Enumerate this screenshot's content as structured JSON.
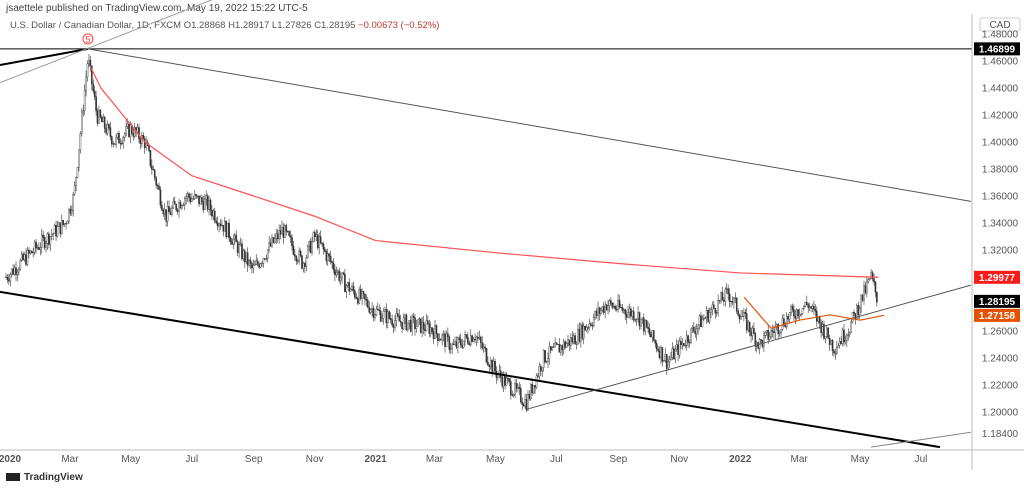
{
  "header": {
    "published": "jsaettele published on TradingView.com, May 19, 2022 15:22 UTC-5",
    "symbol": "U.S. Dollar / Canadian Dollar, 1D, FXCM",
    "open": "O1.28868",
    "high": "H1.28917",
    "low": "L1.27826",
    "close": "C1.28195",
    "change": "−0.00673 (−0.52%)"
  },
  "footer": {
    "logo": "TradingView"
  },
  "chart_data": {
    "type": "candlestick",
    "currency": "CAD",
    "ylim": [
      1.172,
      1.49
    ],
    "y_ticks": [
      "1.48000",
      "1.46000",
      "1.44000",
      "1.42000",
      "1.40000",
      "1.38000",
      "1.36000",
      "1.34000",
      "1.32000",
      "1.26000",
      "1.24000",
      "1.22000",
      "1.20000",
      "1.18400"
    ],
    "x_ticks": [
      {
        "label": "2020",
        "date": "2020-01-01",
        "bold": true
      },
      {
        "label": "Mar",
        "date": "2020-03-01"
      },
      {
        "label": "May",
        "date": "2020-05-01"
      },
      {
        "label": "Jul",
        "date": "2020-07-01"
      },
      {
        "label": "Sep",
        "date": "2020-09-01"
      },
      {
        "label": "Nov",
        "date": "2020-11-01"
      },
      {
        "label": "2021",
        "date": "2021-01-01",
        "bold": true
      },
      {
        "label": "Mar",
        "date": "2021-03-01"
      },
      {
        "label": "May",
        "date": "2021-05-01"
      },
      {
        "label": "Jul",
        "date": "2021-07-01"
      },
      {
        "label": "Sep",
        "date": "2021-09-01"
      },
      {
        "label": "Nov",
        "date": "2021-11-01"
      },
      {
        "label": "2022",
        "date": "2022-01-01",
        "bold": true
      },
      {
        "label": "Mar",
        "date": "2022-03-01"
      },
      {
        "label": "May",
        "date": "2022-05-01"
      },
      {
        "label": "Jul",
        "date": "2022-07-01"
      }
    ],
    "price_path": [
      [
        "2019-12-28",
        1.3
      ],
      [
        "2020-02-01",
        1.325
      ],
      [
        "2020-02-25",
        1.34
      ],
      [
        "2020-03-05",
        1.36
      ],
      [
        "2020-03-19",
        1.462
      ],
      [
        "2020-03-28",
        1.42
      ],
      [
        "2020-04-15",
        1.4
      ],
      [
        "2020-05-01",
        1.41
      ],
      [
        "2020-05-15",
        1.4
      ],
      [
        "2020-06-05",
        1.345
      ],
      [
        "2020-06-25",
        1.36
      ],
      [
        "2020-07-15",
        1.355
      ],
      [
        "2020-08-05",
        1.335
      ],
      [
        "2020-08-31",
        1.305
      ],
      [
        "2020-09-30",
        1.335
      ],
      [
        "2020-10-20",
        1.31
      ],
      [
        "2020-11-01",
        1.33
      ],
      [
        "2020-12-01",
        1.295
      ],
      [
        "2020-12-31",
        1.275
      ],
      [
        "2021-01-20",
        1.268
      ],
      [
        "2021-02-25",
        1.262
      ],
      [
        "2021-03-20",
        1.248
      ],
      [
        "2021-04-10",
        1.258
      ],
      [
        "2021-05-01",
        1.23
      ],
      [
        "2021-06-01",
        1.207
      ],
      [
        "2021-06-18",
        1.24
      ],
      [
        "2021-07-20",
        1.255
      ],
      [
        "2021-08-20",
        1.28
      ],
      [
        "2021-09-20",
        1.272
      ],
      [
        "2021-10-20",
        1.237
      ],
      [
        "2021-11-20",
        1.265
      ],
      [
        "2021-12-20",
        1.288
      ],
      [
        "2022-01-20",
        1.25
      ],
      [
        "2022-02-20",
        1.272
      ],
      [
        "2022-03-10",
        1.28
      ],
      [
        "2022-04-05",
        1.248
      ],
      [
        "2022-04-20",
        1.262
      ],
      [
        "2022-05-12",
        1.3
      ],
      [
        "2022-05-19",
        1.282
      ]
    ],
    "moving_average": {
      "color": "#ff5252",
      "last": "1.29977",
      "points": [
        [
          "2020-03-22",
          1.455
        ],
        [
          "2020-04-01",
          1.44
        ],
        [
          "2020-05-15",
          1.4
        ],
        [
          "2020-07-01",
          1.375
        ],
        [
          "2020-09-01",
          1.36
        ],
        [
          "2020-11-01",
          1.345
        ],
        [
          "2021-01-01",
          1.327
        ],
        [
          "2021-05-01",
          1.318
        ],
        [
          "2021-09-01",
          1.31
        ],
        [
          "2022-01-01",
          1.303
        ],
        [
          "2022-05-19",
          1.2998
        ]
      ]
    },
    "avwap": {
      "color": "#e65100",
      "last": "1.27158",
      "points": [
        [
          "2022-01-05",
          1.285
        ],
        [
          "2022-02-01",
          1.262
        ],
        [
          "2022-03-01",
          1.268
        ],
        [
          "2022-04-01",
          1.272
        ],
        [
          "2022-05-01",
          1.268
        ],
        [
          "2022-05-25",
          1.2716
        ]
      ]
    },
    "last_price": {
      "label": "1.28195",
      "color": "#000000"
    },
    "high_line": {
      "label": "1.46899",
      "price": 1.46899,
      "color": "#000000"
    },
    "wave_label": "5",
    "trendlines": [
      {
        "color": "#555",
        "width": 1,
        "from": [
          "2020-03-19",
          1.469
        ],
        "to": [
          "2022-08-20",
          1.356
        ]
      },
      {
        "color": "#000",
        "width": 2,
        "from": [
          "2019-12-22",
          1.289
        ],
        "to": [
          "2022-07-20",
          1.174
        ]
      },
      {
        "color": "#000",
        "width": 2,
        "from": [
          "2019-12-22",
          1.457
        ],
        "to": [
          "2020-03-19",
          1.469
        ]
      },
      {
        "color": "#999",
        "width": 1,
        "from": [
          "2019-12-22",
          1.444
        ],
        "to": [
          "2020-09-10",
          1.52
        ]
      },
      {
        "color": "#555",
        "width": 1,
        "from": [
          "2021-06-01",
          1.202
        ],
        "to": [
          "2022-08-20",
          1.294
        ]
      },
      {
        "color": "#888",
        "width": 1,
        "from": [
          "2022-05-12",
          1.174
        ],
        "to": [
          "2022-08-20",
          1.185
        ]
      }
    ]
  }
}
